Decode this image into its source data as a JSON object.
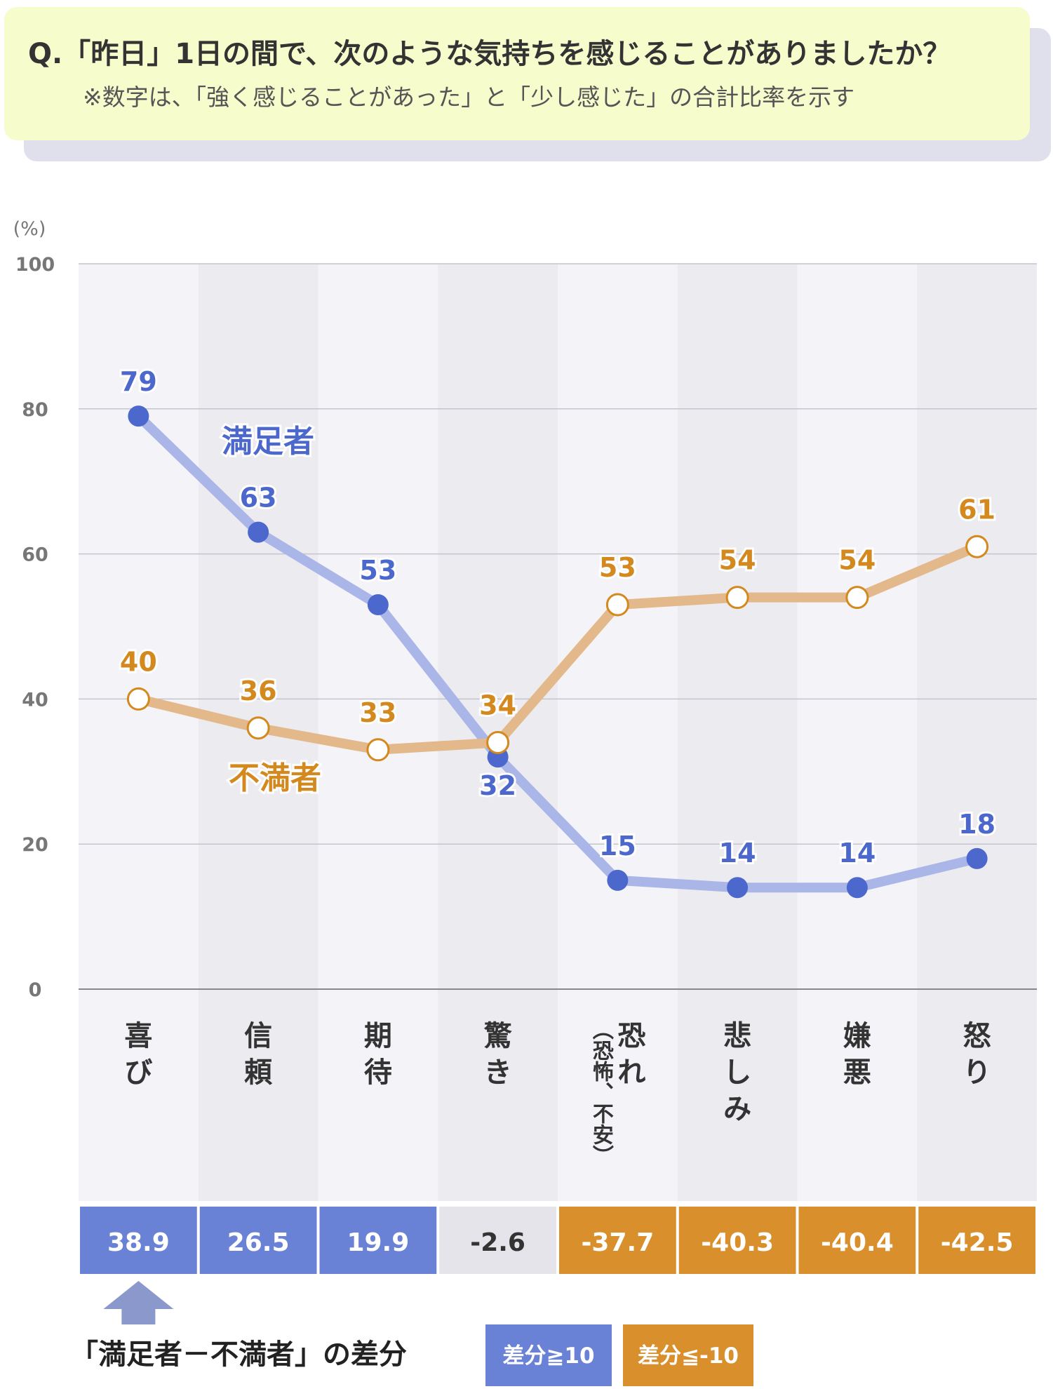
{
  "question": {
    "title": "Q.「昨日」1日の間で、次のような気持ちを感じることがありましたか？",
    "note": "※数字は、「強く感じることがあった」と「少し感じた」の合計比率を示す"
  },
  "colors": {
    "satisfied": "#4d68cc",
    "satisfied_line": "#aab6e8",
    "dissatisfied": "#d4891f",
    "dissatisfied_line": "#e3b88a",
    "positive_diff": "#6a82d6",
    "negative_diff": "#d98f2b",
    "neutral_diff": "#e4e4ea"
  },
  "chart_data": {
    "type": "line",
    "y_unit": "(%)",
    "ylim": [
      0,
      100
    ],
    "yticks": [
      0,
      20,
      40,
      60,
      80,
      100
    ],
    "grid": true,
    "categories": [
      "喜び",
      "信頼",
      "期待",
      "驚き",
      "恐れ",
      "悲しみ",
      "嫌悪",
      "怒り"
    ],
    "category_lines": [
      [
        "喜",
        "び"
      ],
      [
        "信",
        "頼"
      ],
      [
        "期",
        "待"
      ],
      [
        "驚",
        "き"
      ],
      [
        "恐",
        "れ"
      ],
      [
        "悲",
        "し",
        "み"
      ],
      [
        "嫌",
        "悪"
      ],
      [
        "怒",
        "り"
      ]
    ],
    "category_sub": [
      "",
      "",
      "",
      "",
      "（恐怖、不安）",
      "",
      "",
      ""
    ],
    "series": [
      {
        "name": "満足者",
        "values": [
          79,
          63,
          53,
          32,
          15,
          14,
          14,
          18
        ]
      },
      {
        "name": "不満者",
        "values": [
          40,
          36,
          33,
          34,
          53,
          54,
          54,
          61
        ]
      }
    ],
    "differences": [
      "38.9",
      "26.5",
      "19.9",
      "-2.6",
      "-37.7",
      "-40.3",
      "-40.4",
      "-42.5"
    ]
  },
  "legend": {
    "diff_label": "「満足者－不満者」の差分",
    "positive": "差分≧10",
    "negative": "差分≦-10"
  }
}
